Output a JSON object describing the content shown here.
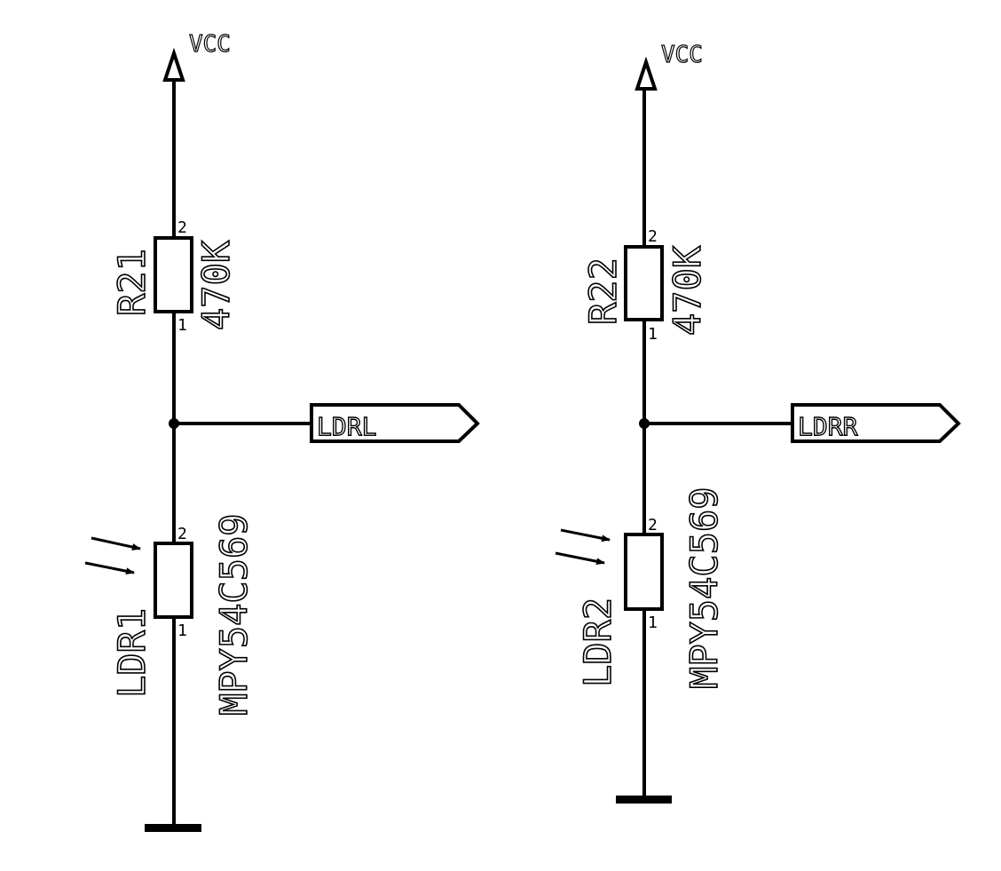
{
  "circuits": [
    {
      "power": {
        "label": "VCC"
      },
      "resistor": {
        "ref": "R21",
        "value": "470K",
        "pin_top": "2",
        "pin_bottom": "1"
      },
      "ldr": {
        "ref": "LDR1",
        "part": "MPY54C569",
        "pin_top": "2",
        "pin_bottom": "1"
      },
      "net_label": "LDRL"
    },
    {
      "power": {
        "label": "VCC"
      },
      "resistor": {
        "ref": "R22",
        "value": "470K",
        "pin_top": "2",
        "pin_bottom": "1"
      },
      "ldr": {
        "ref": "LDR2",
        "part": "MPY54C569",
        "pin_top": "2",
        "pin_bottom": "1"
      },
      "net_label": "LDRR"
    }
  ]
}
